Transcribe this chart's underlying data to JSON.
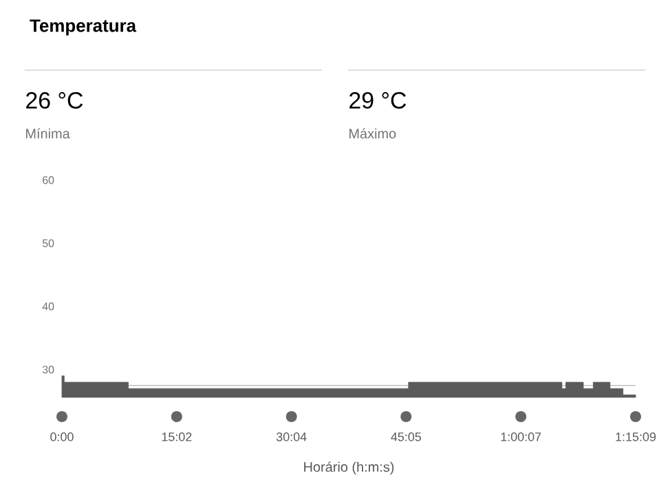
{
  "chart_data": {
    "type": "area",
    "title": "Temperatura",
    "annotations": [
      "26 °C",
      "Mínima",
      "29 °C",
      "Máximo"
    ],
    "xlabel": "Horário (h:m:s)",
    "x": [
      0,
      0.3,
      0.3,
      8.7,
      8.7,
      45.4,
      45.4,
      65.5,
      65.5,
      66.0,
      66.0,
      68.3,
      68.3,
      69.6,
      69.6,
      71.8,
      71.8,
      73.5,
      73.5,
      75.15
    ],
    "series": [
      {
        "color": "#5a5a5a",
        "values": [
          29,
          29,
          28,
          28,
          27,
          27,
          28,
          28,
          27,
          27,
          28,
          28,
          27,
          27,
          28,
          28,
          27,
          27,
          26,
          26
        ]
      }
    ],
    "xlim": [
      0,
      75.15
    ],
    "xticks": [
      {
        "value": 0,
        "label": "0:00"
      },
      {
        "value": 15.033,
        "label": "15:02"
      },
      {
        "value": 30.067,
        "label": "30:04"
      },
      {
        "value": 45.083,
        "label": "45:05"
      },
      {
        "value": 60.117,
        "label": "1:00:07"
      },
      {
        "value": 75.15,
        "label": "1:15:09"
      }
    ],
    "ylim": [
      25.6,
      60
    ],
    "yticks": [
      30,
      40,
      50,
      60
    ],
    "ref_lines": [
      {
        "axis": "y",
        "value": 27.5,
        "color": "#b4b4b4"
      }
    ],
    "grid": false
  }
}
